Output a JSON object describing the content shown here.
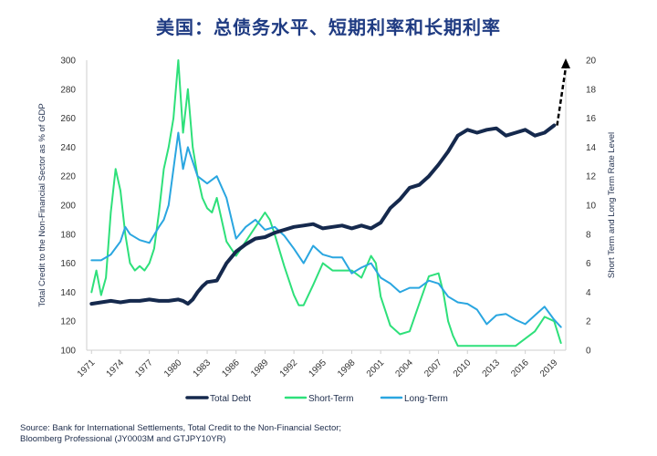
{
  "title": "美国：总债务水平、短期利率和长期利率",
  "source_line1": "Source: Bank for International Settlements, Total Credit to the Non-Financial Sector;",
  "source_line2": "Bloomberg Professional (JY0003M and GTJPY10YR)",
  "chart_data": {
    "type": "line",
    "x_tick_labels": [
      "1971",
      "1974",
      "1977",
      "1980",
      "1983",
      "1986",
      "1989",
      "1992",
      "1995",
      "1998",
      "2001",
      "2004",
      "2007",
      "2010",
      "2013",
      "2016",
      "2019"
    ],
    "ylabel_left": "Total Credit to the Non-Financial Sector as % of GDP",
    "ylabel_right": "Short Term and Long Term Rate Level",
    "ylim_left": [
      100,
      300
    ],
    "ylim_right": [
      0,
      20
    ],
    "y_ticks_left": [
      100,
      120,
      140,
      160,
      180,
      200,
      220,
      240,
      260,
      280,
      300
    ],
    "y_ticks_right": [
      0,
      2,
      4,
      6,
      8,
      10,
      12,
      14,
      16,
      18,
      20
    ],
    "legend_position": "bottom",
    "series": [
      {
        "name": "Total Debt",
        "axis": "left",
        "color": "#15294d",
        "x": [
          1971,
          1972,
          1973,
          1974,
          1975,
          1976,
          1977,
          1978,
          1979,
          1980,
          1980.5,
          1981,
          1981.5,
          1982,
          1982.5,
          1983,
          1984,
          1985,
          1986,
          1987,
          1988,
          1989,
          1990,
          1991,
          1992,
          1993,
          1994,
          1995,
          1996,
          1997,
          1998,
          1999,
          2000,
          2001,
          2002,
          2003,
          2004,
          2005,
          2006,
          2007,
          2008,
          2009,
          2010,
          2011,
          2012,
          2013,
          2014,
          2015,
          2016,
          2017,
          2018,
          2019
        ],
        "values": [
          132,
          133,
          134,
          133,
          134,
          134,
          135,
          134,
          134,
          135,
          134,
          132,
          135,
          140,
          144,
          147,
          148,
          160,
          168,
          173,
          177,
          178,
          181,
          183,
          185,
          186,
          187,
          184,
          185,
          186,
          184,
          186,
          184,
          188,
          198,
          204,
          212,
          214,
          220,
          228,
          237,
          248,
          252,
          250,
          252,
          253,
          248,
          250,
          252,
          248,
          250,
          255
        ]
      },
      {
        "name": "Short-Term",
        "axis": "right",
        "color": "#2ee07a",
        "x": [
          1971,
          1971.5,
          1972,
          1972.5,
          1973,
          1973.5,
          1974,
          1974.5,
          1975,
          1975.5,
          1976,
          1976.5,
          1977,
          1977.5,
          1978,
          1978.5,
          1979,
          1979.5,
          1980,
          1980.5,
          1981,
          1981.5,
          1982,
          1982.5,
          1983,
          1983.5,
          1984,
          1985,
          1986,
          1986.5,
          1987,
          1988,
          1989,
          1989.5,
          1990,
          1991,
          1992,
          1992.5,
          1993,
          1994,
          1995,
          1996,
          1997,
          1998,
          1999,
          2000,
          2000.5,
          2001,
          2002,
          2003,
          2004,
          2005,
          2006,
          2007,
          2007.5,
          2008,
          2008.5,
          2009,
          2010,
          2011,
          2012,
          2013,
          2014,
          2015,
          2016,
          2017,
          2018,
          2019,
          2019.7
        ],
        "values": [
          4.0,
          5.5,
          3.8,
          5.0,
          9.5,
          12.5,
          11.0,
          8.0,
          6.0,
          5.5,
          5.8,
          5.5,
          6.0,
          7.0,
          9.5,
          12.5,
          14.0,
          16.0,
          20,
          15,
          18,
          14,
          12.0,
          10.5,
          9.8,
          9.5,
          10.5,
          7.5,
          6.5,
          7.0,
          7.5,
          8.5,
          9.5,
          9.0,
          8.0,
          5.8,
          3.8,
          3.1,
          3.1,
          4.5,
          6.0,
          5.5,
          5.5,
          5.5,
          5.0,
          6.5,
          6.0,
          3.7,
          1.7,
          1.1,
          1.3,
          3.2,
          5.1,
          5.3,
          4.0,
          2.0,
          1.0,
          0.3,
          0.3,
          0.3,
          0.3,
          0.3,
          0.3,
          0.3,
          0.8,
          1.3,
          2.3,
          2.0,
          0.5
        ]
      },
      {
        "name": "Long-Term",
        "axis": "right",
        "color": "#2aa6e0",
        "x": [
          1971,
          1972,
          1973,
          1974,
          1974.5,
          1975,
          1976,
          1977,
          1978,
          1978.5,
          1979,
          1979.5,
          1980,
          1980.5,
          1981,
          1981.5,
          1982,
          1983,
          1984,
          1985,
          1986,
          1987,
          1988,
          1989,
          1990,
          1991,
          1992,
          1993,
          1994,
          1995,
          1996,
          1997,
          1998,
          1999,
          2000,
          2001,
          2002,
          2003,
          2004,
          2005,
          2006,
          2007,
          2008,
          2009,
          2010,
          2011,
          2012,
          2013,
          2014,
          2015,
          2016,
          2017,
          2018,
          2019,
          2019.7
        ],
        "values": [
          6.2,
          6.2,
          6.6,
          7.5,
          8.5,
          8.0,
          7.6,
          7.4,
          8.5,
          9.0,
          10.0,
          12.5,
          15.0,
          12.5,
          14.0,
          13.0,
          12.0,
          11.5,
          12.0,
          10.5,
          7.7,
          8.5,
          9.0,
          8.3,
          8.5,
          7.9,
          7.0,
          6.0,
          7.2,
          6.6,
          6.4,
          6.4,
          5.3,
          5.7,
          6.0,
          5.0,
          4.6,
          4.0,
          4.3,
          4.3,
          4.8,
          4.6,
          3.7,
          3.3,
          3.2,
          2.8,
          1.8,
          2.4,
          2.5,
          2.1,
          1.8,
          2.4,
          3.0,
          2.1,
          1.6
        ]
      }
    ],
    "projection": {
      "axis": "right",
      "x": [
        2019.3,
        2020.2
      ],
      "values": [
        15.5,
        20.0
      ]
    }
  }
}
